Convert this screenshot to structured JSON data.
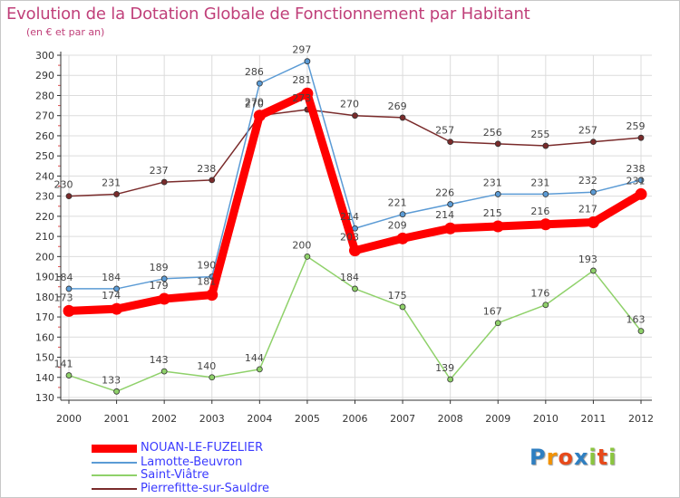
{
  "title": "Evolution de la Dotation Globale de Fonctionnement par Habitant",
  "subtitle": "(en € et par an)",
  "colors": {
    "background": "#ffffff",
    "axis": "#333333",
    "grid": "#dcdcdc",
    "title": "#c0407a"
  },
  "logo": {
    "letters": [
      "P",
      "r",
      "o",
      "x",
      "i",
      "t",
      "i"
    ],
    "colors": [
      "#2f7fc1",
      "#f39200",
      "#e74a1b",
      "#2f7fc1",
      "#8bc53f",
      "#e74a1b",
      "#8bc53f"
    ]
  },
  "chart_data": {
    "type": "line",
    "title": "Evolution de la Dotation Globale de Fonctionnement par Habitant",
    "subtitle": "(en € et par an)",
    "x": [
      2000,
      2001,
      2002,
      2003,
      2004,
      2005,
      2006,
      2007,
      2008,
      2009,
      2010,
      2011,
      2012
    ],
    "ylim": [
      130,
      300
    ],
    "yticks": [
      130,
      140,
      150,
      160,
      170,
      180,
      190,
      200,
      210,
      220,
      230,
      240,
      250,
      260,
      270,
      280,
      290,
      300
    ],
    "grid": true,
    "legend_position": "bottom-left",
    "series": [
      {
        "name": "NOUAN-LE-FUZELIER",
        "color": "#ff0000",
        "legend_color": "#3a3aff",
        "values": [
          173,
          174,
          179,
          181,
          270,
          281,
          203,
          209,
          214,
          215,
          216,
          217,
          231
        ]
      },
      {
        "name": "Lamotte-Beuvron",
        "color": "#5b9bd5",
        "legend_color": "#3a3aff",
        "values": [
          184,
          184,
          189,
          190,
          286,
          297,
          214,
          221,
          226,
          231,
          231,
          232,
          238
        ]
      },
      {
        "name": "Saint-Viâtre",
        "color": "#8fd16a",
        "legend_color": "#3a3aff",
        "values": [
          141,
          133,
          143,
          140,
          144,
          200,
          184,
          175,
          139,
          167,
          176,
          193,
          163
        ]
      },
      {
        "name": "Pierrefitte-sur-Sauldre",
        "color": "#7a2b2b",
        "legend_color": "#3a3aff",
        "values": [
          230,
          231,
          237,
          238,
          270,
          273,
          270,
          269,
          257,
          256,
          255,
          257,
          259
        ]
      }
    ]
  }
}
